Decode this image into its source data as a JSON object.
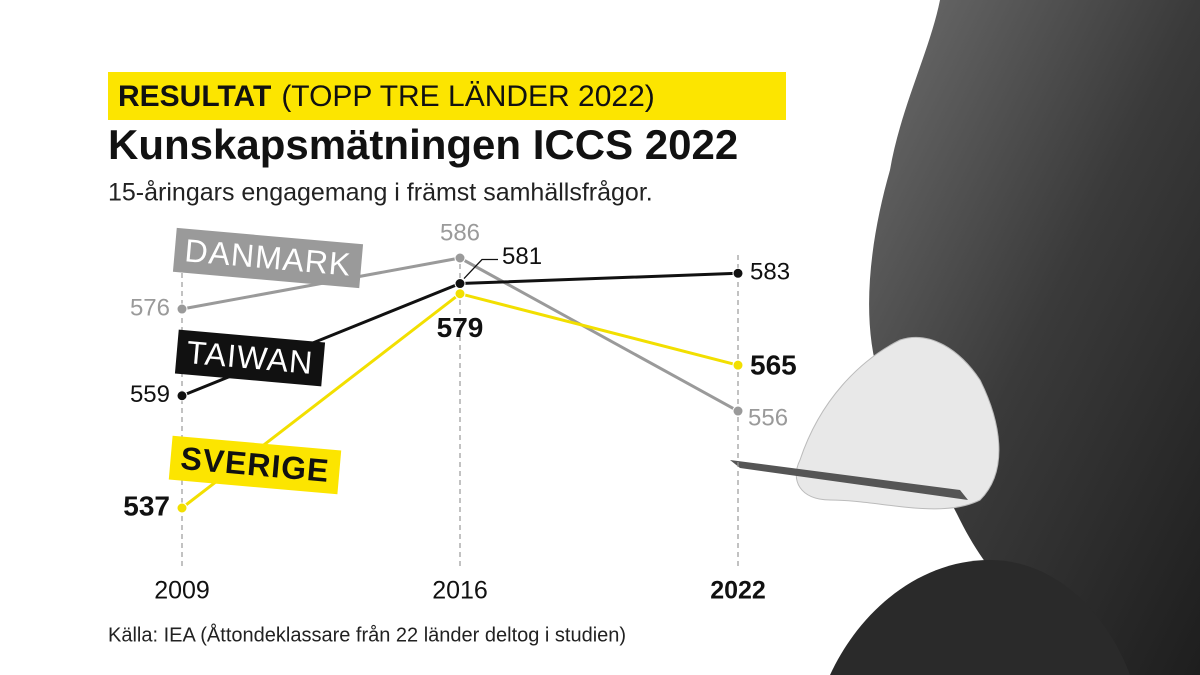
{
  "chart_data": {
    "type": "line",
    "kicker": "RESULTAT",
    "kicker_note": "(TOPP TRE LÄNDER 2022)",
    "title": "Kunskapsmätningen ICCS 2022",
    "subtitle": "15-åringars engagemang i främst samhällsfrågor.",
    "source": "Källa: IEA (Åttondeklassare från 22 länder deltog i studien)",
    "categories": [
      "2009",
      "2016",
      "2022"
    ],
    "series": [
      {
        "name": "DANMARK",
        "color": "#9a9a9a",
        "values": [
          576,
          586,
          556
        ]
      },
      {
        "name": "TAIWAN",
        "color": "#111111",
        "values": [
          559,
          581,
          583
        ]
      },
      {
        "name": "SVERIGE",
        "color": "#f2df00",
        "values": [
          537,
          579,
          565
        ]
      }
    ],
    "grid": true
  }
}
